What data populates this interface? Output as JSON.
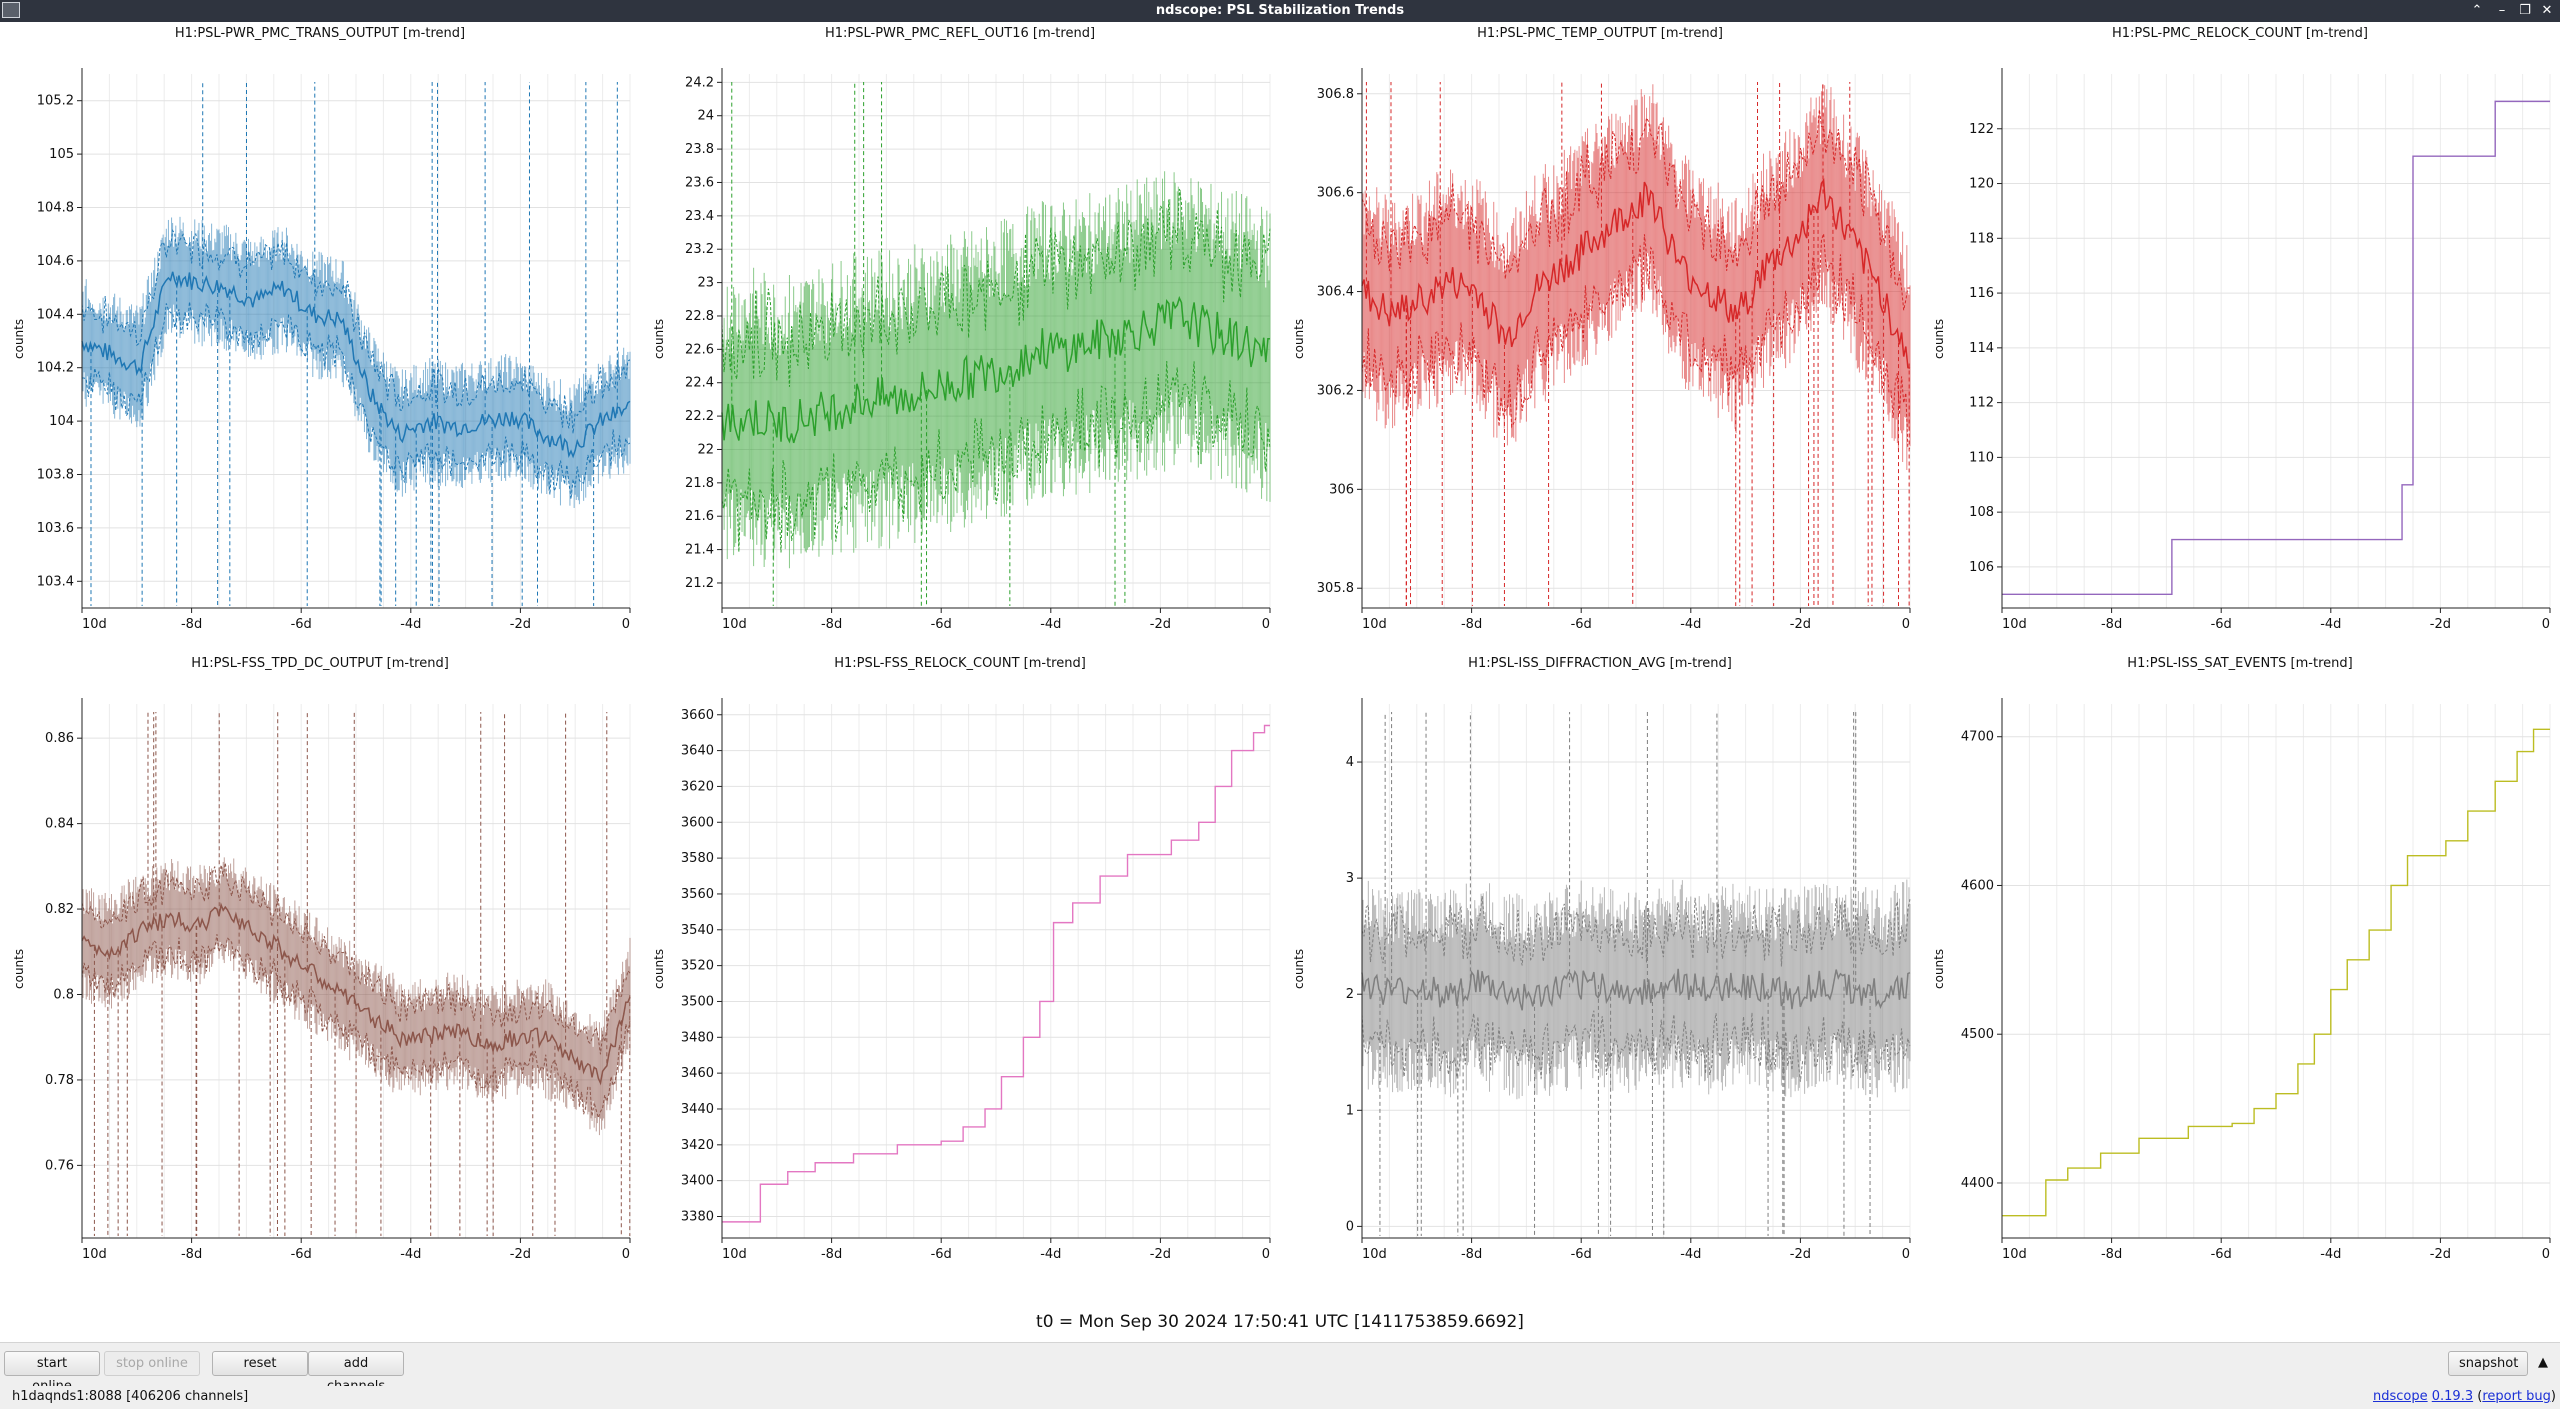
{
  "window": {
    "title": "ndscope: PSL Stabilization Trends",
    "buttons": [
      "⌃",
      "–",
      "❐",
      "✕"
    ]
  },
  "colors": {
    "blue": "#1f77b4",
    "green": "#2ca02c",
    "red": "#d62728",
    "purple": "#9467bd",
    "brown": "#8c564b",
    "pink": "#e377c2",
    "gray": "#7f7f7f",
    "olive": "#bcbd22"
  },
  "plots": [
    {
      "id": "p1",
      "title": "H1:PSL-PWR_PMC_TRANS_OUTPUT [m-trend]",
      "ylabel": "counts",
      "color": "#1f77b4",
      "style": "trend",
      "ymin": 103.3,
      "ymax": 105.3,
      "yticks": [
        "103.4",
        "103.6",
        "103.8",
        "104",
        "104.2",
        "104.4",
        "104.6",
        "104.8",
        "105",
        "105.2"
      ],
      "xticks": [
        "10d",
        "-8d",
        "-6d",
        "-4d",
        "-2d",
        "0"
      ],
      "trend_mean": [
        104.3,
        104.25,
        104.2,
        104.55,
        104.52,
        104.5,
        104.45,
        104.5,
        104.4,
        104.38,
        104.1,
        103.95,
        104.0,
        103.98,
        104.0,
        104.02,
        103.95,
        103.9,
        104.0,
        104.05
      ],
      "band": 0.12,
      "spikes": 26
    },
    {
      "id": "p2",
      "title": "H1:PSL-PWR_PMC_REFL_OUT16 [m-trend]",
      "ylabel": "counts",
      "color": "#2ca02c",
      "style": "trend",
      "ymin": 21.05,
      "ymax": 24.25,
      "yticks": [
        "21.2",
        "21.4",
        "21.6",
        "21.8",
        "22",
        "22.2",
        "22.4",
        "22.6",
        "22.8",
        "23",
        "23.2",
        "23.4",
        "23.6",
        "23.8",
        "24",
        "24.2"
      ],
      "xticks": [
        "10d",
        "-8d",
        "-6d",
        "-4d",
        "-2d",
        "0"
      ],
      "trend_mean": [
        22.15,
        22.2,
        22.15,
        22.2,
        22.25,
        22.3,
        22.3,
        22.35,
        22.4,
        22.45,
        22.5,
        22.6,
        22.6,
        22.65,
        22.7,
        22.75,
        22.8,
        22.7,
        22.65,
        22.55
      ],
      "band": 0.45,
      "spikes": 10
    },
    {
      "id": "p3",
      "title": "H1:PSL-PMC_TEMP_OUTPUT [m-trend]",
      "ylabel": "counts",
      "color": "#d62728",
      "style": "trend",
      "ymin": 305.76,
      "ymax": 306.84,
      "yticks": [
        "305.8",
        "306",
        "306.2",
        "306.4",
        "306.6",
        "306.8"
      ],
      "xticks": [
        "10d",
        "-8d",
        "-6d",
        "-4d",
        "-2d",
        "0"
      ],
      "trend_mean": [
        306.4,
        306.35,
        306.38,
        306.42,
        306.4,
        306.3,
        306.4,
        306.45,
        306.5,
        306.55,
        306.6,
        306.45,
        306.4,
        306.35,
        306.45,
        306.5,
        306.6,
        306.5,
        306.4,
        306.25
      ],
      "band": 0.12,
      "spikes": 30
    },
    {
      "id": "p4",
      "title": "H1:PSL-PMC_RELOCK_COUNT [m-trend]",
      "ylabel": "counts",
      "color": "#9467bd",
      "style": "step",
      "ymin": 104.5,
      "ymax": 124,
      "yticks": [
        "106",
        "108",
        "110",
        "112",
        "114",
        "116",
        "118",
        "120",
        "122"
      ],
      "xticks": [
        "10d",
        "-8d",
        "-6d",
        "-4d",
        "-2d",
        "0"
      ],
      "steps": [
        [
          -10,
          105
        ],
        [
          -6.9,
          107
        ],
        [
          -2.7,
          109
        ],
        [
          -2.5,
          121
        ],
        [
          -1,
          123
        ]
      ]
    },
    {
      "id": "p5",
      "title": "H1:PSL-FSS_TPD_DC_OUTPUT [m-trend]",
      "ylabel": "counts",
      "color": "#8c564b",
      "style": "trend",
      "ymin": 0.743,
      "ymax": 0.868,
      "yticks": [
        "0.76",
        "0.78",
        "0.8",
        "0.82",
        "0.84",
        "0.86"
      ],
      "xticks": [
        "10d",
        "-8d",
        "-6d",
        "-4d",
        "-2d",
        "0"
      ],
      "trend_mean": [
        0.812,
        0.81,
        0.815,
        0.818,
        0.816,
        0.82,
        0.815,
        0.81,
        0.805,
        0.8,
        0.795,
        0.79,
        0.79,
        0.792,
        0.788,
        0.79,
        0.79,
        0.785,
        0.78,
        0.8
      ],
      "band": 0.007,
      "spikes": 34
    },
    {
      "id": "p6",
      "title": "H1:PSL-FSS_RELOCK_COUNT [m-trend]",
      "ylabel": "counts",
      "color": "#e377c2",
      "style": "step",
      "ymin": 3368,
      "ymax": 3666,
      "yticks": [
        "3380",
        "3400",
        "3420",
        "3440",
        "3460",
        "3480",
        "3500",
        "3520",
        "3540",
        "3560",
        "3580",
        "3600",
        "3620",
        "3640",
        "3660"
      ],
      "xticks": [
        "10d",
        "-8d",
        "-6d",
        "-4d",
        "-2d",
        "0"
      ],
      "steps": [
        [
          -10,
          3377
        ],
        [
          -9.3,
          3398
        ],
        [
          -8.8,
          3405
        ],
        [
          -8.3,
          3410
        ],
        [
          -7.6,
          3415
        ],
        [
          -6.8,
          3420
        ],
        [
          -6,
          3422
        ],
        [
          -5.6,
          3430
        ],
        [
          -5.2,
          3440
        ],
        [
          -4.9,
          3458
        ],
        [
          -4.5,
          3480
        ],
        [
          -4.2,
          3500
        ],
        [
          -3.95,
          3544
        ],
        [
          -3.6,
          3555
        ],
        [
          -3.1,
          3570
        ],
        [
          -2.6,
          3582
        ],
        [
          -1.8,
          3590
        ],
        [
          -1.3,
          3600
        ],
        [
          -1,
          3620
        ],
        [
          -0.7,
          3640
        ],
        [
          -0.3,
          3650
        ],
        [
          -0.1,
          3654
        ]
      ]
    },
    {
      "id": "p7",
      "title": "H1:PSL-ISS_DIFFRACTION_AVG [m-trend]",
      "ylabel": "counts",
      "color": "#7f7f7f",
      "style": "trend",
      "ymin": -0.1,
      "ymax": 4.5,
      "yticks": [
        "0",
        "1",
        "2",
        "3",
        "4"
      ],
      "xticks": [
        "10d",
        "-8d",
        "-6d",
        "-4d",
        "-2d",
        "0"
      ],
      "trend_mean": [
        2.1,
        2.0,
        2.05,
        2.0,
        2.1,
        2.0,
        1.95,
        2.05,
        2.1,
        2.0,
        2.05,
        2.1,
        2.0,
        2.1,
        2.05,
        2.0,
        2.1,
        2.05,
        2.0,
        2.1
      ],
      "band": 0.45,
      "spikes": 24
    },
    {
      "id": "p8",
      "title": "H1:PSL-ISS_SAT_EVENTS [m-trend]",
      "ylabel": "counts",
      "color": "#bcbd22",
      "style": "step",
      "ymin": 4363,
      "ymax": 4722,
      "yticks": [
        "4400",
        "4500",
        "4600",
        "4700"
      ],
      "xticks": [
        "10d",
        "-8d",
        "-6d",
        "-4d",
        "-2d",
        "0"
      ],
      "steps": [
        [
          -10,
          4378
        ],
        [
          -9.2,
          4402
        ],
        [
          -8.8,
          4410
        ],
        [
          -8.2,
          4420
        ],
        [
          -7.5,
          4430
        ],
        [
          -6.6,
          4438
        ],
        [
          -5.8,
          4440
        ],
        [
          -5.4,
          4450
        ],
        [
          -5,
          4460
        ],
        [
          -4.6,
          4480
        ],
        [
          -4.3,
          4500
        ],
        [
          -4,
          4530
        ],
        [
          -3.7,
          4550
        ],
        [
          -3.3,
          4570
        ],
        [
          -2.9,
          4600
        ],
        [
          -2.6,
          4620
        ],
        [
          -1.9,
          4630
        ],
        [
          -1.5,
          4650
        ],
        [
          -1,
          4670
        ],
        [
          -0.6,
          4690
        ],
        [
          -0.3,
          4705
        ]
      ]
    }
  ],
  "t0": "t0 = Mon Sep 30 2024 17:50:41 UTC [1411753859.6692]",
  "toolbar": {
    "start_online": "start online",
    "stop_online": "stop online",
    "reset": "reset",
    "add_channels": "add channels",
    "snapshot": "snapshot",
    "expand_icon": "▲"
  },
  "status": {
    "server": "h1daqnds1:8088  [406206 channels]",
    "app_name": "ndscope",
    "version": "0.19.3",
    "report_bug": "report bug"
  }
}
